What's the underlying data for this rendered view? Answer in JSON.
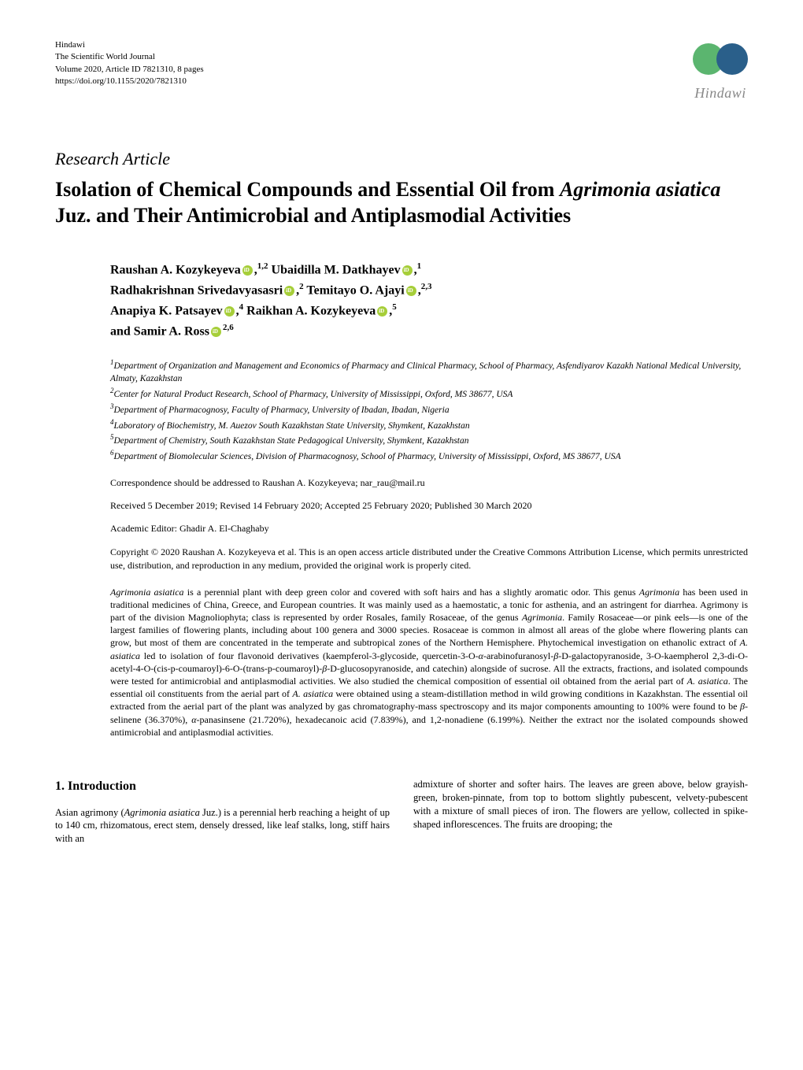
{
  "journal": {
    "publisher": "Hindawi",
    "name": "The Scientific World Journal",
    "volume": "Volume 2020, Article ID 7821310, 8 pages",
    "doi": "https://doi.org/10.1155/2020/7821310",
    "logo_text": "Hindawi"
  },
  "article_type": "Research Article",
  "title_parts": {
    "pre": "Isolation of Chemical Compounds and Essential Oil from ",
    "italic": "Agrimonia asiatica",
    "post": " Juz. and Their Antimicrobial and Antiplasmodial Activities"
  },
  "authors": [
    {
      "name": "Raushan A. Kozykeyeva",
      "orcid": true,
      "sup": "1,2",
      "comma": ","
    },
    {
      "name": " Ubaidilla M. Datkhayev",
      "orcid": true,
      "sup": "1",
      "comma": ","
    },
    {
      "name": "Radhakrishnan Srivedavyasasri",
      "orcid": true,
      "sup": "2",
      "comma": ","
    },
    {
      "name": " Temitayo O. Ajayi",
      "orcid": true,
      "sup": "2,3",
      "comma": ","
    },
    {
      "name": "Anapiya K. Patsayev",
      "orcid": true,
      "sup": "4",
      "comma": ","
    },
    {
      "name": " Raikhan A. Kozykeyeva",
      "orcid": true,
      "sup": "5",
      "comma": ","
    },
    {
      "name": " and Samir A. Ross",
      "orcid": true,
      "sup": "2,6",
      "comma": ""
    }
  ],
  "affiliations": [
    {
      "num": "1",
      "text": "Department of Organization and Management and Economics of Pharmacy and Clinical Pharmacy, School of Pharmacy, Asfendiyarov Kazakh National Medical University, Almaty, Kazakhstan"
    },
    {
      "num": "2",
      "text": "Center for Natural Product Research, School of Pharmacy, University of Mississippi, Oxford, MS 38677, USA"
    },
    {
      "num": "3",
      "text": "Department of Pharmacognosy, Faculty of Pharmacy, University of Ibadan, Ibadan, Nigeria"
    },
    {
      "num": "4",
      "text": "Laboratory of Biochemistry, M. Auezov South Kazakhstan State University, Shymkent, Kazakhstan"
    },
    {
      "num": "5",
      "text": "Department of Chemistry, South Kazakhstan State Pedagogical University, Shymkent, Kazakhstan"
    },
    {
      "num": "6",
      "text": "Department of Biomolecular Sciences, Division of Pharmacognosy, School of Pharmacy, University of Mississippi, Oxford, MS 38677, USA"
    }
  ],
  "correspondence": "Correspondence should be addressed to Raushan A. Kozykeyeva; nar_rau@mail.ru",
  "dates": "Received 5 December 2019; Revised 14 February 2020; Accepted 25 February 2020; Published 30 March 2020",
  "editor": "Academic Editor: Ghadir A. El-Chaghaby",
  "copyright": "Copyright © 2020 Raushan A. Kozykeyeva et al. This is an open access article distributed under the Creative Commons Attribution License, which permits unrestricted use, distribution, and reproduction in any medium, provided the original work is properly cited.",
  "abstract_html": "<span class=\"italic\">Agrimonia asiatica</span> is a perennial plant with deep green color and covered with soft hairs and has a slightly aromatic odor. This genus <span class=\"italic\">Agrimonia</span> has been used in traditional medicines of China, Greece, and European countries. It was mainly used as a haemostatic, a tonic for asthenia, and an astringent for diarrhea. Agrimony is part of the division Magnoliophyta; class is represented by order Rosales, family Rosaceae, of the genus <span class=\"italic\">Agrimonia</span>. Family Rosaceae—or pink eels—is one of the largest families of flowering plants, including about 100 genera and 3000 species. Rosaceae is common in almost all areas of the globe where flowering plants can grow, but most of them are concentrated in the temperate and subtropical zones of the Northern Hemisphere. Phytochemical investigation on ethanolic extract of <span class=\"italic\">A. asiatica</span> led to isolation of four flavonoid derivatives (kaempferol-3-glycoside, quercetin-3-O-<span class=\"italic\">α</span>-arabinofuranosyl-<span class=\"italic\">β</span>-D-galactopyranoside, 3-O-kaempherol 2,3-di-O-acetyl-4-O-(cis-p-coumaroyl)-6-O-(trans-p-coumaroyl)-<span class=\"italic\">β</span>-D-glucosopyranoside, and catechin) alongside of sucrose. All the extracts, fractions, and isolated compounds were tested for antimicrobial and antiplasmodial activities. We also studied the chemical composition of essential oil obtained from the aerial part of <span class=\"italic\">A. asiatica</span>. The essential oil constituents from the aerial part of <span class=\"italic\">A. asiatica</span> were obtained using a steam-distillation method in wild growing conditions in Kazakhstan. The essential oil extracted from the aerial part of the plant was analyzed by gas chromatography-mass spectroscopy and its major components amounting to 100% were found to be <span class=\"italic\">β</span>-selinene (36.370%), <span class=\"italic\">α</span>-panasinsene (21.720%), hexadecanoic acid (7.839%), and 1,2-nonadiene (6.199%). Neither the extract nor the isolated compounds showed antimicrobial and antiplasmodial activities.",
  "section1": {
    "heading": "1. Introduction",
    "col1_html": "Asian agrimony (<span class=\"italic\">Agrimonia asiatica</span> Juz.) is a perennial herb reaching a height of up to 140 cm, rhizomatous, erect stem, densely dressed, like leaf stalks, long, stiff hairs with an",
    "col2_html": "admixture of shorter and softer hairs. The leaves are green above, below grayish-green, broken-pinnate, from top to bottom slightly pubescent, velvety-pubescent with a mixture of small pieces of iron. The flowers are yellow, collected in spike-shaped inflorescences. The fruits are drooping; the"
  },
  "colors": {
    "logo_green": "#5bb56f",
    "logo_blue": "#2a5f8a",
    "orcid": "#a6ce39",
    "text": "#000000",
    "background": "#ffffff"
  }
}
